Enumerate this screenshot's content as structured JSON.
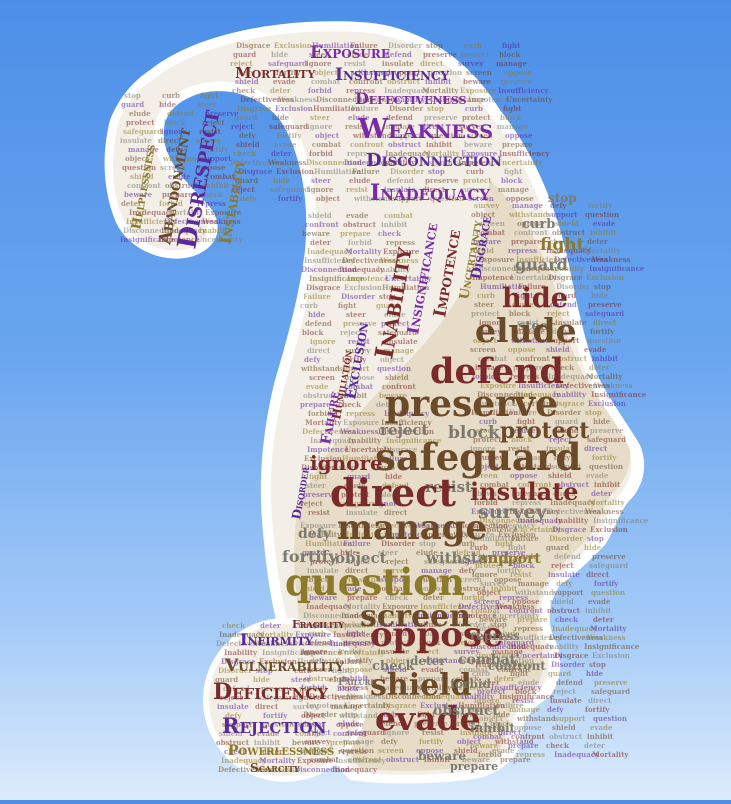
{
  "colors": {
    "background_top": "#4d8fe8",
    "background_bottom": "#dcebfb",
    "outline": "#ffffff",
    "fill": "#f4efe6",
    "purple": "#7a2aa8",
    "violet": "#5a2a9a",
    "maroon": "#7a2a2a",
    "brown": "#6b4a2a",
    "olive": "#8a7a2a",
    "gray": "#7a7a70"
  },
  "words": {
    "head_top": [
      "Inadequacy",
      "Mortality",
      "Exposure",
      "Insufficiency",
      "Defectiveness",
      "Weakness",
      "Disconnection",
      "Inadequacy"
    ],
    "hook": [
      "Disrespect",
      "Abandonment",
      "Helplessness",
      "Instability",
      "Insufficiency",
      "Disconnection"
    ],
    "vertical": [
      "Inability",
      "Insignificance",
      "Impotence",
      "Uncertainty",
      "Disgrace",
      "Exclusion",
      "Humiliation",
      "Failure",
      "Disorder"
    ],
    "face": [
      "stop",
      "curb",
      "fight",
      "guard",
      "hide",
      "steer",
      "elude",
      "defend",
      "preserve",
      "protect",
      "block",
      "reject",
      "safeguard",
      "ignore",
      "resist",
      "insulate",
      "direct",
      "survey",
      "manage",
      "defy",
      "fortify",
      "object",
      "withstand",
      "support",
      "question",
      "screen",
      "oppose",
      "shield",
      "evade",
      "combat",
      "confront",
      "obstruct",
      "inhibit",
      "beware",
      "prepare",
      "check",
      "deter",
      "forbid",
      "repress"
    ],
    "dot": [
      "Infirmity",
      "Fragility",
      "Vulnerability",
      "Deficiency",
      "Rejection",
      "Powerlessness",
      "Scarcity",
      "Failure"
    ]
  }
}
